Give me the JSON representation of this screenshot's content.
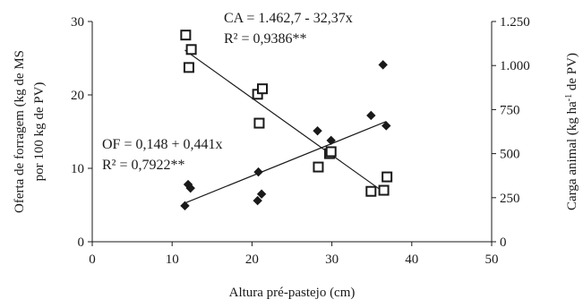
{
  "chart_data": {
    "type": "scatter",
    "x_axis": {
      "label": "Altura pré-pastejo (cm)",
      "range": [
        0,
        50
      ],
      "ticks": [
        0,
        10,
        20,
        30,
        40,
        50
      ],
      "tick_labels": [
        "0",
        "10",
        "20",
        "30",
        "40",
        "50"
      ]
    },
    "y_axis_left": {
      "label_line1": "Oferta de forragem (kg de MS",
      "label_line2": "por 100 kg de PV)",
      "range": [
        0,
        30
      ],
      "ticks": [
        0,
        10,
        20,
        30
      ],
      "tick_labels": [
        "0",
        "10",
        "20",
        "30"
      ]
    },
    "y_axis_right": {
      "label_main": "Carga animal (kg ha",
      "label_sup": "-1",
      "label_end": " de PV)",
      "range": [
        0,
        1250
      ],
      "ticks": [
        0,
        250,
        500,
        750,
        1000,
        1250
      ],
      "tick_labels": [
        "0",
        "250",
        "500",
        "750",
        "1.000",
        "1.250"
      ]
    },
    "series": [
      {
        "name": "OF",
        "axis": "left",
        "marker": "diamond",
        "color": "#1a1a1a",
        "points": [
          [
            11.6,
            4.9
          ],
          [
            12.0,
            7.8
          ],
          [
            12.3,
            7.3
          ],
          [
            20.7,
            5.6
          ],
          [
            20.8,
            9.5
          ],
          [
            21.2,
            6.5
          ],
          [
            28.2,
            15.1
          ],
          [
            29.8,
            12.3
          ],
          [
            29.9,
            13.8
          ],
          [
            34.9,
            17.2
          ],
          [
            36.4,
            24.1
          ],
          [
            36.8,
            15.8
          ]
        ],
        "fit": {
          "intercept": 0.148,
          "slope": 0.441,
          "x_range": [
            11.6,
            36.8
          ]
        },
        "equation": "OF = 0,148 + 0,441x",
        "r2": "R² = 0,7922**"
      },
      {
        "name": "CA",
        "axis": "right",
        "marker": "square",
        "color": "#1a1a1a",
        "points": [
          [
            11.7,
            1173
          ],
          [
            12.1,
            989
          ],
          [
            12.4,
            1091
          ],
          [
            20.7,
            837
          ],
          [
            20.9,
            673
          ],
          [
            21.3,
            868
          ],
          [
            28.3,
            424
          ],
          [
            29.7,
            500
          ],
          [
            29.9,
            511
          ],
          [
            34.9,
            286
          ],
          [
            36.5,
            292
          ],
          [
            36.9,
            368
          ]
        ],
        "fit": {
          "intercept": 1462.7,
          "slope": -32.37,
          "x_range": [
            11.6,
            36.8
          ]
        },
        "equation": "CA = 1.462,7 - 32,37x",
        "r2": "R² = 0,9386**"
      }
    ],
    "grid": false,
    "legend": "none"
  }
}
